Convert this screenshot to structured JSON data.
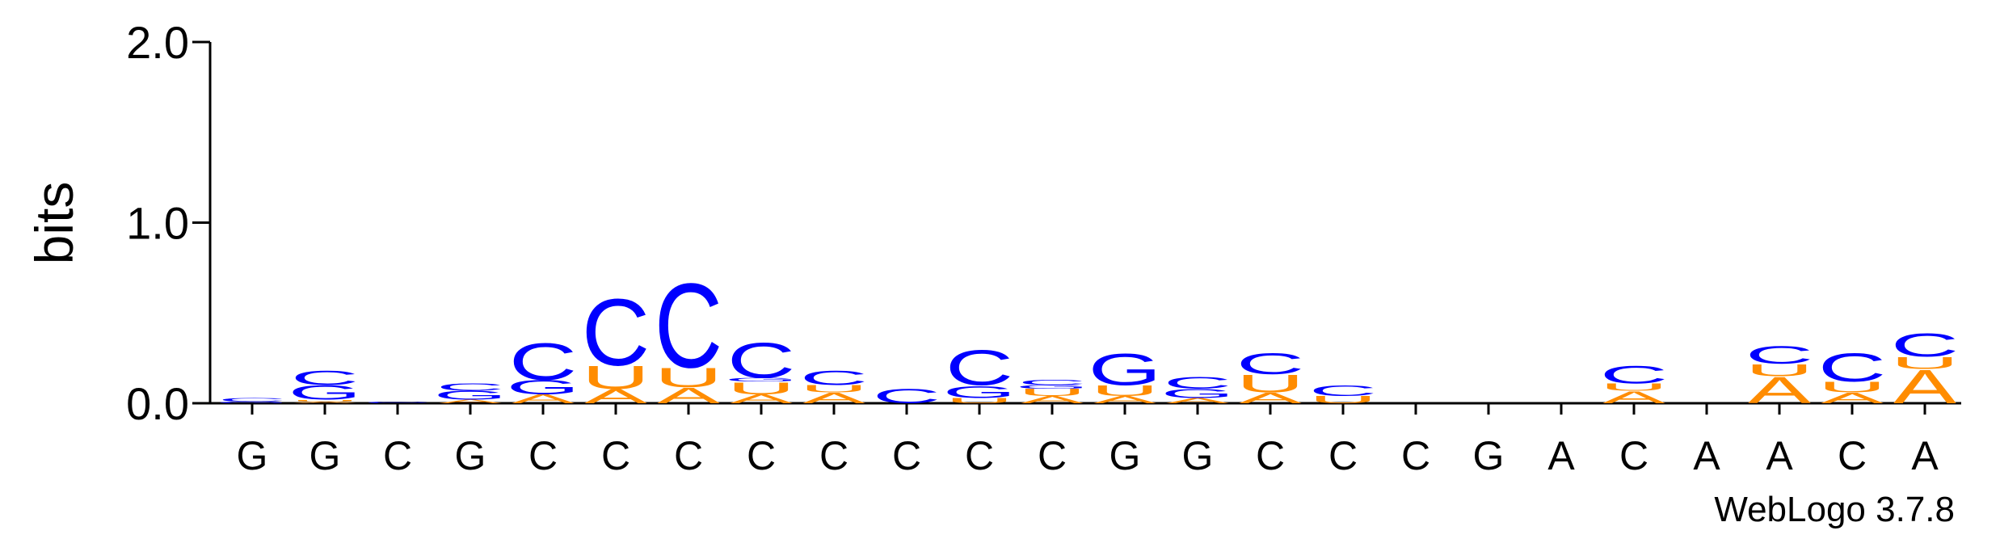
{
  "chart_data": {
    "type": "logo",
    "ylabel": "bits",
    "credit": "WebLogo 3.7.8",
    "categories": [
      "G",
      "G",
      "C",
      "G",
      "C",
      "C",
      "C",
      "C",
      "C",
      "C",
      "C",
      "C",
      "G",
      "G",
      "C",
      "C",
      "C",
      "G",
      "A",
      "C",
      "A",
      "A",
      "C",
      "A"
    ],
    "series": [
      {
        "name": "A",
        "color": "#ff8c00",
        "values": [
          0,
          0.01,
          0,
          0.02,
          0.05,
          0.08,
          0.09,
          0.05,
          0.06,
          0,
          0,
          0.04,
          0.04,
          0.03,
          0.06,
          0,
          0,
          0,
          0,
          0.07,
          0,
          0.15,
          0.06,
          0.19
        ]
      },
      {
        "name": "U",
        "color": "#ff8c00",
        "values": [
          0,
          0.01,
          0,
          0,
          0,
          0.13,
          0.11,
          0.07,
          0.04,
          0,
          0.03,
          0.04,
          0.06,
          0,
          0.1,
          0.04,
          0,
          0,
          0,
          0.04,
          0,
          0.07,
          0.06,
          0.07
        ]
      },
      {
        "name": "G",
        "color": "#0000ff",
        "values": [
          0.01,
          0.08,
          0,
          0.05,
          0.08,
          0,
          0,
          0.02,
          0,
          0,
          0.07,
          0.02,
          0.18,
          0.05,
          0,
          0,
          0,
          0,
          0,
          0,
          0,
          0,
          0,
          0
        ]
      },
      {
        "name": "C",
        "color": "#0000ff",
        "values": [
          0.02,
          0.08,
          0.01,
          0.04,
          0.21,
          0.38,
          0.48,
          0.2,
          0.08,
          0.08,
          0.2,
          0.03,
          0,
          0.07,
          0.12,
          0.06,
          0,
          0,
          0,
          0.1,
          0,
          0.1,
          0.16,
          0.13
        ]
      }
    ],
    "ylim": [
      0,
      2
    ],
    "yticks": [
      {
        "value": 0,
        "label": "0.0"
      },
      {
        "value": 1,
        "label": "1.0"
      },
      {
        "value": 2,
        "label": "2.0"
      }
    ]
  }
}
